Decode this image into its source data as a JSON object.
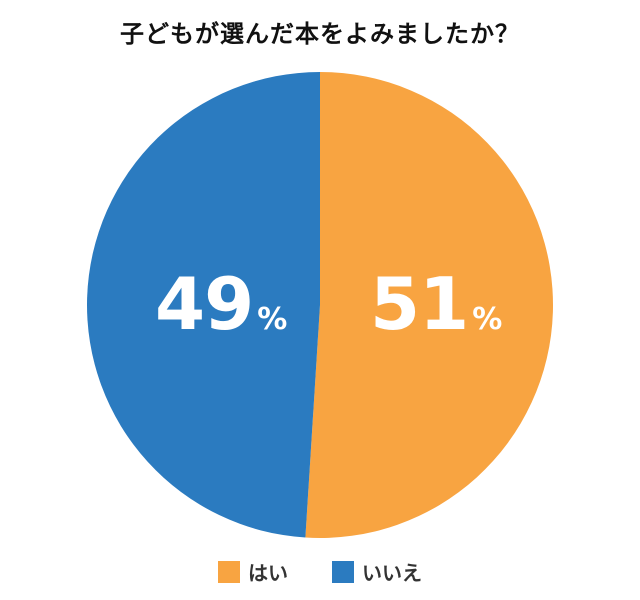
{
  "chart_data": {
    "type": "pie",
    "title": "子どもが選んだ本をよみましたか？",
    "categories": [
      "はい",
      "いいえ"
    ],
    "values": [
      51,
      49
    ],
    "unit": "%",
    "colors": [
      "#F8A441",
      "#2B7BC0"
    ],
    "start_angle": "12 o'clock, clockwise",
    "legend_position": "bottom",
    "data_labels": [
      "51%",
      "49%"
    ]
  },
  "title": "子どもが選んだ本をよみましたか？",
  "labels": {
    "yes": {
      "num": "51",
      "sym": "%"
    },
    "no": {
      "num": "49",
      "sym": "%"
    }
  },
  "legend": [
    {
      "label": "はい",
      "color": "#F8A441"
    },
    {
      "label": "いいえ",
      "color": "#2B7BC0"
    }
  ]
}
